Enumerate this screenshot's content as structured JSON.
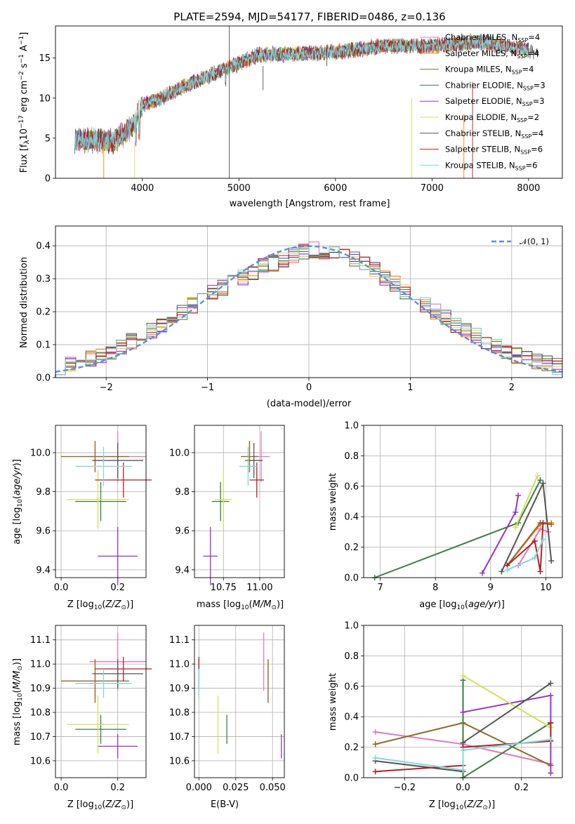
{
  "title": "PLATE=2594, MJD=54177, FIBERID=0486, z=0.136",
  "colors": {
    "Chabrier MILES": "#e377c2",
    "Salpeter MILES": "#ff7f0e",
    "Kroupa MILES": "#8c6d31",
    "Chabrier ELODIE": "#3a7d44",
    "Salpeter ELODIE": "#9932cc",
    "Kroupa ELODIE": "#d4e157",
    "Chabrier STELIB": "#555555",
    "Salpeter STELIB": "#b22222",
    "Kroupa STELIB": "#80d8e0",
    "normal": "#5b8fd9"
  },
  "panels": {
    "spectrum": {
      "xlabel": "wavelength [Angstrom, rest frame]",
      "ylabel": "Flux [f",
      "ylabel_lambda": "λ",
      "ylabel_rest": "10",
      "ylabel_exp": "−17",
      "ylabel_units": " erg cm",
      "ylabel_e2": "−2",
      "ylabel_s": " s",
      "ylabel_e1": "−1",
      "ylabel_A": " A",
      "ylabel_e3": "−1",
      "ylabel_end": "]",
      "xticks": [
        "4000",
        "5000",
        "6000",
        "7000",
        "8000"
      ],
      "yticks": [
        "0",
        "5",
        "10",
        "15"
      ],
      "legend": [
        {
          "name": "Chabrier MILES",
          "n": "4"
        },
        {
          "name": "Salpeter MILES",
          "n": "4"
        },
        {
          "name": "Kroupa MILES",
          "n": "4"
        },
        {
          "name": "Chabrier ELODIE",
          "n": "3"
        },
        {
          "name": "Salpeter ELODIE",
          "n": "3"
        },
        {
          "name": "Kroupa ELODIE",
          "n": "2"
        },
        {
          "name": "Chabrier STELIB",
          "n": "4"
        },
        {
          "name": "Salpeter STELIB",
          "n": "6"
        },
        {
          "name": "Kroupa STELIB",
          "n": "6"
        }
      ],
      "legend_n_prefix": "N",
      "legend_n_sub": "SSP",
      "legend_n_eq": "="
    },
    "hist": {
      "xlabel": "(data-model)/error",
      "ylabel": "Normed distribution",
      "xticks": [
        "−2",
        "−1",
        "0",
        "1",
        "2"
      ],
      "yticks": [
        "0.0",
        "0.1",
        "0.2",
        "0.3",
        "0.4"
      ],
      "legend_label": "𝒩(0, 1)"
    },
    "age_z": {
      "xlabel": "Z [log",
      "xlabel_sub": "10",
      "xlabel_rest": "(Z/Z",
      "xlabel_sun": "⊙",
      "xlabel_end": ")]",
      "ylabel": "age  [log10(age/yr)]",
      "xticks": [
        "0.0",
        "0.2"
      ],
      "yticks": [
        "9.4",
        "9.6",
        "9.8",
        "10.0"
      ]
    },
    "age_mass": {
      "xlabel": "mass [log10(M/M⊙)]",
      "xticks": [
        "10.75",
        "11.00"
      ],
      "yticks": [
        "9.4",
        "9.6",
        "9.8",
        "10.0"
      ]
    },
    "weight_age": {
      "xlabel": "age  [log10(age/yr)]",
      "ylabel": "mass weight",
      "xticks": [
        "7",
        "8",
        "9",
        "10"
      ],
      "yticks": [
        "0.0",
        "0.2",
        "0.4",
        "0.6",
        "0.8",
        "1.0"
      ]
    },
    "mass_z": {
      "xlabel": "Z [log10(Z/Z⊙)]",
      "ylabel": "mass [log10(M/M⊙)]",
      "xticks": [
        "0.0",
        "0.2"
      ],
      "yticks": [
        "10.6",
        "10.7",
        "10.8",
        "10.9",
        "11.0",
        "11.1"
      ]
    },
    "mass_ebv": {
      "xlabel": "E(B-V)",
      "xticks": [
        "0.000",
        "0.025",
        "0.050"
      ],
      "yticks": [
        "10.6",
        "10.7",
        "10.8",
        "10.9",
        "11.0",
        "11.1"
      ]
    },
    "weight_z": {
      "xlabel": "Z [log10(Z/Z⊙)]",
      "ylabel": "mass weight",
      "xticks": [
        "−0.2",
        "0.0",
        "0.2"
      ],
      "yticks": [
        "0.0",
        "0.2",
        "0.4",
        "0.6",
        "0.8",
        "1.0"
      ]
    }
  },
  "chart_data": [
    {
      "type": "line",
      "title": "PLATE=2594, MJD=54177, FIBERID=0486, z=0.136",
      "xlabel": "wavelength [Angstrom, rest frame]",
      "ylabel": "Flux [fλ10^-17 erg cm^-2 s^-1 A^-1]",
      "xlim": [
        3100,
        8350
      ],
      "ylim": [
        0,
        19
      ],
      "continuum_x": [
        3300,
        3500,
        3700,
        3900,
        4000,
        4200,
        4400,
        4600,
        4800,
        5000,
        5200,
        5500,
        6000,
        6500,
        7000,
        7500,
        8000,
        8100
      ],
      "continuum_y": [
        4.8,
        4.8,
        4.5,
        6.5,
        9.2,
        10.0,
        11.3,
        12.3,
        13.3,
        14.3,
        15.4,
        15.5,
        15.7,
        16.5,
        16.5,
        17.0,
        16.0,
        15.5
      ],
      "legend_placement": "top-right"
    },
    {
      "type": "line",
      "xlabel": "(data-model)/error",
      "ylabel": "Normed distribution",
      "xlim": [
        -2.5,
        2.5
      ],
      "ylim": [
        0,
        0.46
      ],
      "grid": true,
      "bin_width": 0.1,
      "hist_envelope_x": [
        -2.5,
        -2.0,
        -1.5,
        -1.0,
        -0.5,
        0.0,
        0.5,
        1.0,
        1.5,
        2.0,
        2.5
      ],
      "hist_envelope_y": [
        0.03,
        0.07,
        0.15,
        0.25,
        0.33,
        0.39,
        0.36,
        0.25,
        0.15,
        0.07,
        0.03
      ],
      "series": [
        {
          "name": "𝒩(0, 1)",
          "mu": 0,
          "sigma": 1
        }
      ],
      "legend_placement": "top-right"
    },
    {
      "type": "scatter",
      "panel": "age vs Z",
      "xlim": [
        -0.02,
        0.3
      ],
      "ylim": [
        9.36,
        10.14
      ],
      "points": [
        {
          "m": "Chabrier MILES",
          "x": 0.2,
          "y": 9.98,
          "xerr": 0.1,
          "yerr": 0.13
        },
        {
          "m": "Salpeter MILES",
          "x": 0.12,
          "y": 9.98,
          "xerr": 0.12,
          "yerr": 0.08
        },
        {
          "m": "Kroupa MILES",
          "x": 0.12,
          "y": 9.98,
          "xerr": 0.12,
          "yerr": 0.08
        },
        {
          "m": "Chabrier ELODIE",
          "x": 0.14,
          "y": 9.75,
          "xerr": 0.09,
          "yerr": 0.1
        },
        {
          "m": "Salpeter ELODIE",
          "x": 0.2,
          "y": 9.47,
          "xerr": 0.07,
          "yerr": 0.15
        },
        {
          "m": "Kroupa ELODIE",
          "x": 0.13,
          "y": 9.76,
          "xerr": 0.11,
          "yerr": 0.15
        },
        {
          "m": "Chabrier STELIB",
          "x": 0.2,
          "y": 9.96,
          "xerr": 0.09,
          "yerr": 0.09
        },
        {
          "m": "Salpeter STELIB",
          "x": 0.22,
          "y": 9.86,
          "xerr": 0.1,
          "yerr": 0.09
        },
        {
          "m": "Kroupa STELIB",
          "x": 0.15,
          "y": 9.93,
          "xerr": 0.1,
          "yerr": 0.1
        }
      ]
    },
    {
      "type": "scatter",
      "panel": "age vs mass",
      "xlim": [
        10.55,
        11.17
      ],
      "ylim": [
        9.36,
        10.14
      ],
      "points": [
        {
          "m": "Chabrier MILES",
          "x": 11.01,
          "y": 9.98,
          "xerr": 0.06,
          "yerr": 0.13
        },
        {
          "m": "Salpeter MILES",
          "x": 10.93,
          "y": 9.98,
          "xerr": 0.06,
          "yerr": 0.08
        },
        {
          "m": "Kroupa MILES",
          "x": 10.93,
          "y": 9.98,
          "xerr": 0.06,
          "yerr": 0.08
        },
        {
          "m": "Chabrier ELODIE",
          "x": 10.73,
          "y": 9.75,
          "xerr": 0.06,
          "yerr": 0.1
        },
        {
          "m": "Salpeter ELODIE",
          "x": 10.66,
          "y": 9.47,
          "xerr": 0.05,
          "yerr": 0.15
        },
        {
          "m": "Kroupa ELODIE",
          "x": 10.75,
          "y": 9.76,
          "xerr": 0.06,
          "yerr": 0.15
        },
        {
          "m": "Chabrier STELIB",
          "x": 10.96,
          "y": 9.96,
          "xerr": 0.06,
          "yerr": 0.09
        },
        {
          "m": "Salpeter STELIB",
          "x": 10.98,
          "y": 9.86,
          "xerr": 0.05,
          "yerr": 0.09
        },
        {
          "m": "Kroupa STELIB",
          "x": 10.92,
          "y": 9.93,
          "xerr": 0.06,
          "yerr": 0.1
        }
      ]
    },
    {
      "type": "line",
      "panel": "mass weight vs age",
      "xlim": [
        6.7,
        10.3
      ],
      "ylim": [
        0,
        1
      ],
      "series": [
        {
          "m": "Chabrier MILES",
          "x": [
            9.5,
            9.9,
            10.05
          ],
          "y": [
            0.08,
            0.32,
            0.3
          ]
        },
        {
          "m": "Salpeter MILES",
          "x": [
            9.3,
            9.9,
            10.1
          ],
          "y": [
            0.08,
            0.35,
            0.36
          ]
        },
        {
          "m": "Kroupa MILES",
          "x": [
            9.3,
            9.9,
            10.1
          ],
          "y": [
            0.08,
            0.36,
            0.35
          ]
        },
        {
          "m": "Chabrier ELODIE",
          "x": [
            6.9,
            9.5,
            9.9
          ],
          "y": [
            0.0,
            0.36,
            0.64
          ]
        },
        {
          "m": "Salpeter ELODIE",
          "x": [
            8.85,
            9.45,
            9.5
          ],
          "y": [
            0.03,
            0.43,
            0.54
          ]
        },
        {
          "m": "Kroupa ELODIE",
          "x": [
            9.45,
            9.85
          ],
          "y": [
            0.33,
            0.67
          ]
        },
        {
          "m": "Chabrier STELIB",
          "x": [
            9.2,
            9.95,
            10.1
          ],
          "y": [
            0.04,
            0.62,
            0.11
          ]
        },
        {
          "m": "Salpeter STELIB",
          "x": [
            9.3,
            9.8,
            9.9,
            9.95
          ],
          "y": [
            0.08,
            0.24,
            0.04,
            0.36
          ]
        },
        {
          "m": "Kroupa STELIB",
          "x": [
            9.3,
            9.8,
            9.95
          ],
          "y": [
            0.05,
            0.13,
            0.25
          ]
        }
      ]
    },
    {
      "type": "scatter",
      "panel": "mass vs Z",
      "xlim": [
        -0.02,
        0.3
      ],
      "ylim": [
        10.53,
        11.16
      ],
      "points": [
        {
          "m": "Chabrier MILES",
          "x": 0.2,
          "y": 11.01,
          "xerr": 0.1,
          "yerr": 0.12
        },
        {
          "m": "Salpeter MILES",
          "x": 0.12,
          "y": 10.93,
          "xerr": 0.12,
          "yerr": 0.09
        },
        {
          "m": "Kroupa MILES",
          "x": 0.12,
          "y": 10.93,
          "xerr": 0.12,
          "yerr": 0.09
        },
        {
          "m": "Chabrier ELODIE",
          "x": 0.14,
          "y": 10.73,
          "xerr": 0.09,
          "yerr": 0.06
        },
        {
          "m": "Salpeter ELODIE",
          "x": 0.2,
          "y": 10.66,
          "xerr": 0.07,
          "yerr": 0.05
        },
        {
          "m": "Kroupa ELODIE",
          "x": 0.13,
          "y": 10.75,
          "xerr": 0.11,
          "yerr": 0.12
        },
        {
          "m": "Chabrier STELIB",
          "x": 0.2,
          "y": 10.96,
          "xerr": 0.09,
          "yerr": 0.06
        },
        {
          "m": "Salpeter STELIB",
          "x": 0.22,
          "y": 10.98,
          "xerr": 0.1,
          "yerr": 0.05
        },
        {
          "m": "Kroupa STELIB",
          "x": 0.15,
          "y": 10.92,
          "xerr": 0.1,
          "yerr": 0.06
        }
      ]
    },
    {
      "type": "scatter",
      "panel": "mass vs E(B-V)",
      "xlim": [
        -0.003,
        0.058
      ],
      "ylim": [
        10.53,
        11.16
      ],
      "points": [
        {
          "m": "Chabrier MILES",
          "x": 0.044,
          "y": 11.01,
          "yerr": 0.12
        },
        {
          "m": "Salpeter MILES",
          "x": 0.047,
          "y": 10.93,
          "yerr": 0.09
        },
        {
          "m": "Kroupa MILES",
          "x": 0.047,
          "y": 10.93,
          "yerr": 0.09
        },
        {
          "m": "Chabrier ELODIE",
          "x": 0.019,
          "y": 10.73,
          "yerr": 0.06
        },
        {
          "m": "Salpeter ELODIE",
          "x": 0.056,
          "y": 10.66,
          "yerr": 0.05
        },
        {
          "m": "Kroupa ELODIE",
          "x": 0.013,
          "y": 10.75,
          "yerr": 0.12
        },
        {
          "m": "Chabrier STELIB",
          "x": 0.0,
          "y": 10.96,
          "yerr": 0.06
        },
        {
          "m": "Salpeter STELIB",
          "x": 0.0,
          "y": 10.98,
          "yerr": 0.05
        },
        {
          "m": "Kroupa STELIB",
          "x": 0.0,
          "y": 10.92,
          "yerr": 0.06
        }
      ]
    },
    {
      "type": "line",
      "panel": "mass weight vs Z",
      "xlim": [
        -0.34,
        0.34
      ],
      "ylim": [
        0,
        1
      ],
      "series": [
        {
          "m": "Chabrier MILES",
          "x": [
            -0.3,
            0.0,
            0.3
          ],
          "y": [
            0.3,
            0.22,
            0.09
          ]
        },
        {
          "m": "Salpeter MILES",
          "x": [
            -0.3,
            0.0,
            0.3
          ],
          "y": [
            0.22,
            0.36,
            0.08
          ]
        },
        {
          "m": "Kroupa MILES",
          "x": [
            -0.3,
            0.0,
            0.3
          ],
          "y": [
            0.22,
            0.36,
            0.08
          ]
        },
        {
          "m": "Chabrier ELODIE",
          "x": [
            0.0,
            0.0,
            0.3,
            0.3
          ],
          "y": [
            0.64,
            0.0,
            0.36,
            0.36
          ]
        },
        {
          "m": "Salpeter ELODIE",
          "x": [
            0.0,
            0.3,
            0.3
          ],
          "y": [
            0.43,
            0.54,
            0.03
          ]
        },
        {
          "m": "Kroupa ELODIE",
          "x": [
            0.0,
            0.3
          ],
          "y": [
            0.67,
            0.33
          ]
        },
        {
          "m": "Chabrier STELIB",
          "x": [
            -0.3,
            0.0,
            0.0,
            0.3
          ],
          "y": [
            0.11,
            0.04,
            0.23,
            0.62
          ]
        },
        {
          "m": "Salpeter STELIB",
          "x": [
            -0.3,
            0.0,
            0.0,
            0.3,
            0.3
          ],
          "y": [
            0.04,
            0.08,
            0.2,
            0.24,
            0.36
          ]
        },
        {
          "m": "Kroupa STELIB",
          "x": [
            -0.3,
            0.0,
            0.0,
            0.3
          ],
          "y": [
            0.13,
            0.05,
            0.18,
            0.25
          ]
        }
      ]
    }
  ]
}
